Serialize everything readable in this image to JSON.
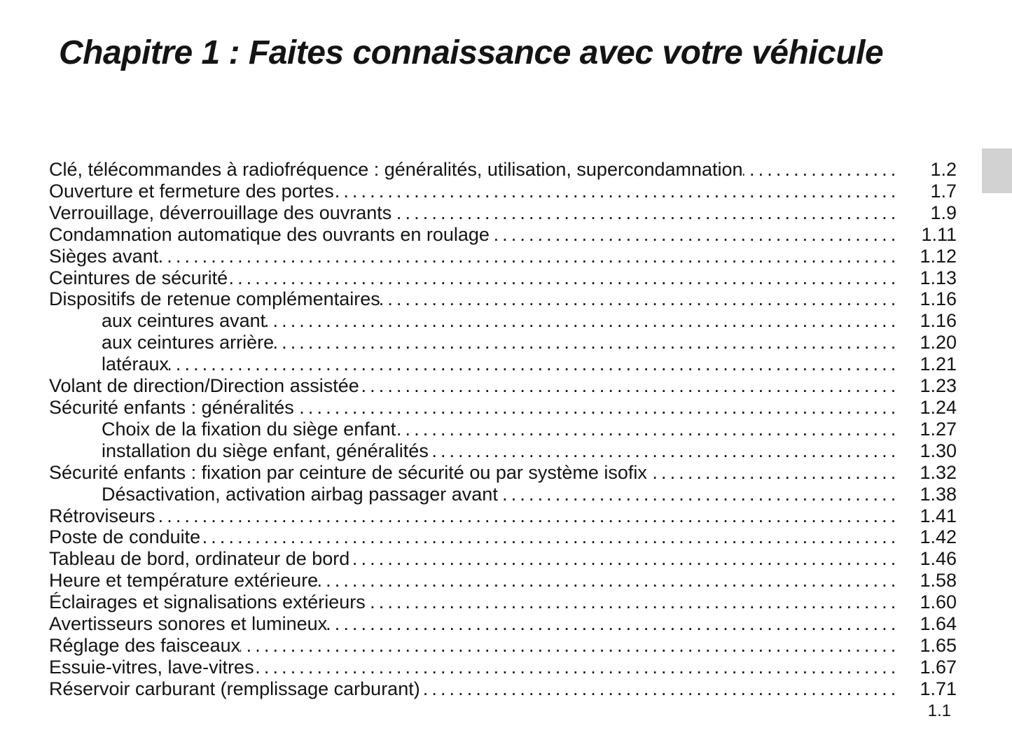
{
  "page": {
    "title": "Chapitre 1 : Faites connaissance avec votre véhicule",
    "footer_page_number": "1.1",
    "tab_color": "#d2d2d2",
    "text_color": "#141414"
  },
  "toc": {
    "entries": [
      {
        "label": "Clé, télécommandes à radiofréquence : généralités, utilisation, supercondamnation",
        "page": "1.2",
        "indent": false
      },
      {
        "label": "Ouverture et fermeture des portes",
        "page": "1.7",
        "indent": false
      },
      {
        "label": "Verrouillage, déverrouillage des ouvrants",
        "page": "1.9",
        "indent": false
      },
      {
        "label": "Condamnation automatique des ouvrants en roulage",
        "page": "1.11",
        "indent": false
      },
      {
        "label": "Sièges avant",
        "page": "1.12",
        "indent": false
      },
      {
        "label": "Ceintures de sécurité",
        "page": "1.13",
        "indent": false
      },
      {
        "label": "Dispositifs de retenue complémentaires",
        "page": "1.16",
        "indent": false
      },
      {
        "label": "aux ceintures avant",
        "page": "1.16",
        "indent": true
      },
      {
        "label": "aux ceintures arrière",
        "page": "1.20",
        "indent": true
      },
      {
        "label": "latéraux",
        "page": "1.21",
        "indent": true
      },
      {
        "label": "Volant de direction/Direction assistée",
        "page": "1.23",
        "indent": false
      },
      {
        "label": "Sécurité enfants : généralités",
        "page": "1.24",
        "indent": false
      },
      {
        "label": "Choix de la fixation du siège enfant",
        "page": "1.27",
        "indent": true
      },
      {
        "label": "installation du siège enfant, généralités",
        "page": "1.30",
        "indent": true
      },
      {
        "label": "Sécurité enfants : fixation par ceinture de sécurité ou par système isofix",
        "page": "1.32",
        "indent": false
      },
      {
        "label": "Désactivation, activation airbag passager avant",
        "page": "1.38",
        "indent": true
      },
      {
        "label": "Rétroviseurs",
        "page": "1.41",
        "indent": false
      },
      {
        "label": "Poste de conduite",
        "page": "1.42",
        "indent": false
      },
      {
        "label": "Tableau de bord, ordinateur de bord",
        "page": "1.46",
        "indent": false
      },
      {
        "label": "Heure et température extérieure",
        "page": "1.58",
        "indent": false
      },
      {
        "label": "Éclairages et signalisations extérieurs",
        "page": "1.60",
        "indent": false
      },
      {
        "label": "Avertisseurs sonores et lumineux",
        "page": "1.64",
        "indent": false
      },
      {
        "label": "Réglage des faisceaux",
        "page": "1.65",
        "indent": false
      },
      {
        "label": "Essuie-vitres, lave-vitres",
        "page": "1.67",
        "indent": false
      },
      {
        "label": "Réservoir carburant (remplissage carburant)",
        "page": "1.71",
        "indent": false
      }
    ]
  }
}
